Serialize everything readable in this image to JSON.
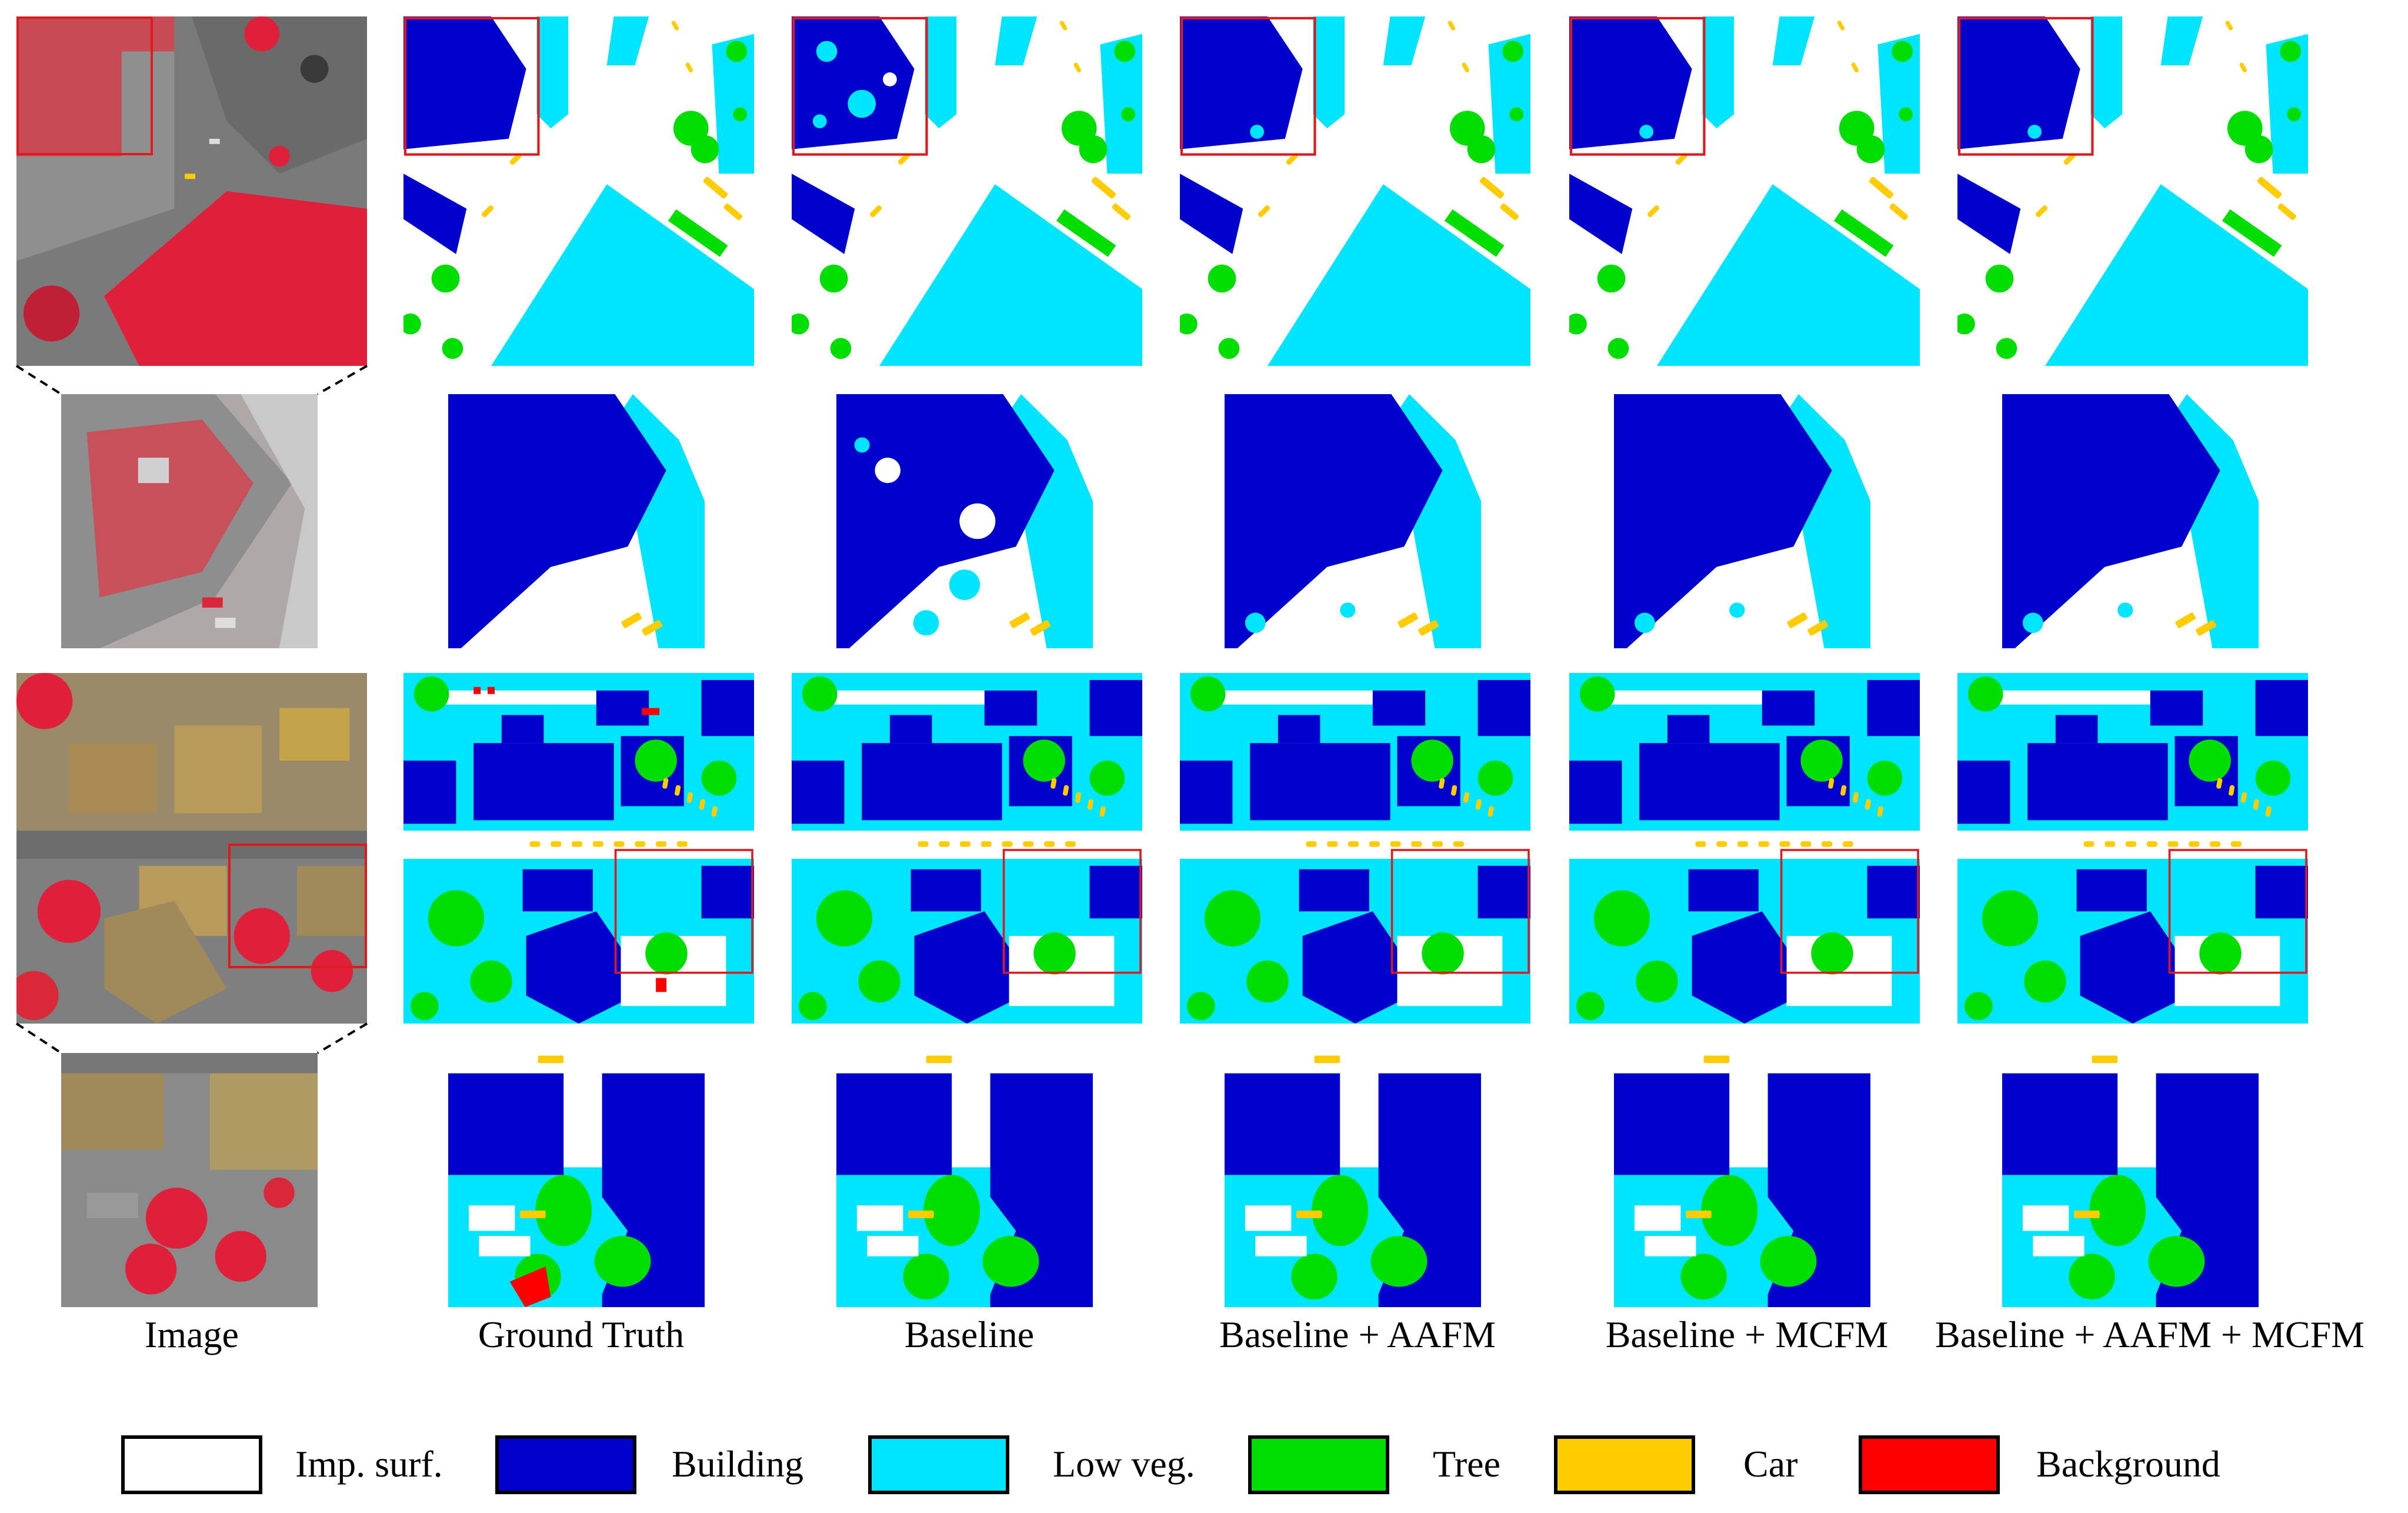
{
  "captions": [
    "Image",
    "Ground Truth",
    "Baseline",
    "Baseline + AAFM",
    "Baseline + MCFM",
    "Baseline + AAFM + MCFM"
  ],
  "legend": [
    {
      "label": "Imp. surf.",
      "color": "#ffffff"
    },
    {
      "label": "Building",
      "color": "#0000cc"
    },
    {
      "label": "Low veg.",
      "color": "#00e5ff"
    },
    {
      "label": "Tree",
      "color": "#00dd00"
    },
    {
      "label": "Car",
      "color": "#ffcc00"
    },
    {
      "label": "Background",
      "color": "#ff0000"
    }
  ],
  "colors": {
    "imp_surf": "#ffffff",
    "building": "#0000cc",
    "low_veg": "#00e5ff",
    "tree": "#00dd00",
    "car": "#ffcc00",
    "background": "#ff0000",
    "zoom_box": "#e0191f",
    "aerial_red": "#d9283a",
    "aerial_road": "#6f6f6f",
    "aerial_roof": "#b89a5a"
  }
}
